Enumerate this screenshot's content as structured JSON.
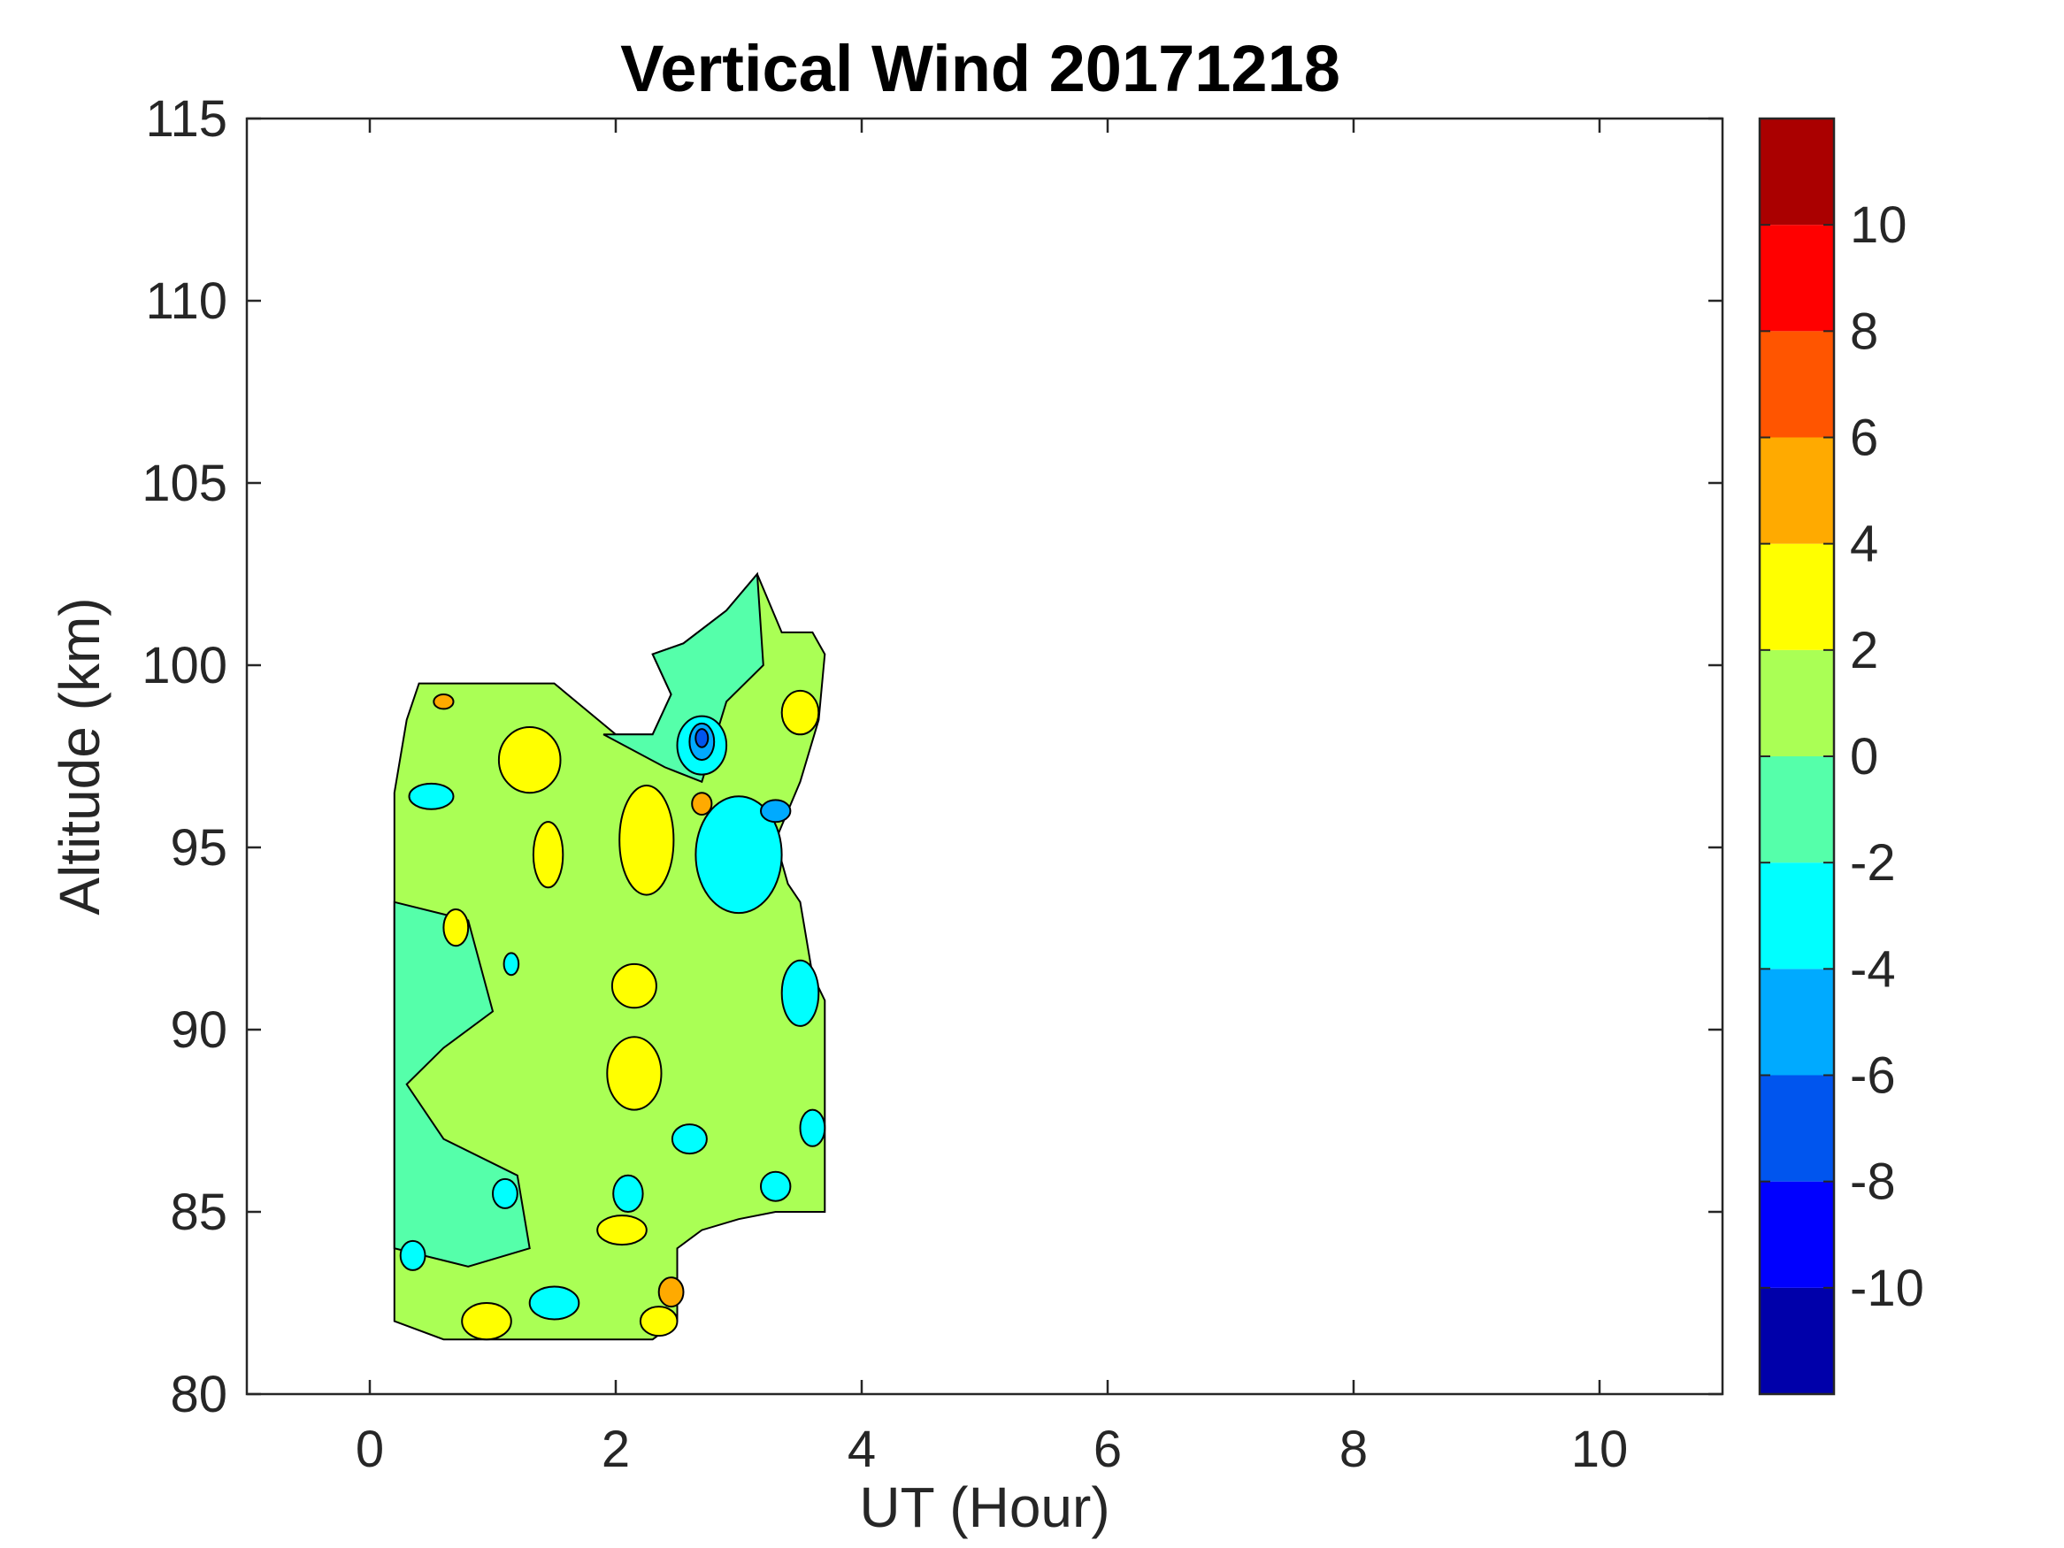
{
  "chart_data": {
    "type": "heatmap",
    "title": "Vertical Wind 20171218",
    "xlabel": "UT (Hour)",
    "ylabel": "Altitude (km)",
    "xlim": [
      -1,
      11
    ],
    "ylim": [
      80,
      115
    ],
    "x_ticks": [
      0,
      2,
      4,
      6,
      8,
      10
    ],
    "y_ticks": [
      80,
      85,
      90,
      95,
      100,
      105,
      110,
      115
    ],
    "grid": false,
    "colorbar": {
      "placement": "right",
      "range": [
        -12,
        12
      ],
      "levels": [
        -12,
        -10,
        -8,
        -6,
        -4,
        -2,
        0,
        2,
        4,
        6,
        8,
        10,
        12
      ],
      "colors": [
        "#0000aa",
        "#0000ff",
        "#0055ee",
        "#00aaff",
        "#00ffff",
        "#55ffaa",
        "#aaff55",
        "#ffff00",
        "#ffaa00",
        "#ff5500",
        "#ff0000",
        "#aa0000"
      ],
      "tick_values": [
        10,
        8,
        6,
        4,
        2,
        0,
        -2,
        -4,
        -6,
        -8,
        -10
      ]
    },
    "data_region": [
      [
        0.2,
        96.5
      ],
      [
        0.3,
        98.5
      ],
      [
        0.4,
        99.5
      ],
      [
        0.8,
        99.5
      ],
      [
        1.2,
        99.5
      ],
      [
        1.5,
        99.5
      ],
      [
        2.0,
        98.1
      ],
      [
        2.3,
        98.1
      ],
      [
        2.45,
        99.2
      ],
      [
        2.3,
        100.3
      ],
      [
        2.55,
        100.6
      ],
      [
        2.9,
        101.5
      ],
      [
        3.15,
        102.5
      ],
      [
        3.35,
        100.9
      ],
      [
        3.6,
        100.9
      ],
      [
        3.7,
        100.3
      ],
      [
        3.65,
        98.5
      ],
      [
        3.5,
        96.8
      ],
      [
        3.3,
        95.2
      ],
      [
        3.4,
        94.0
      ],
      [
        3.5,
        93.5
      ],
      [
        3.6,
        91.5
      ],
      [
        3.7,
        90.8
      ],
      [
        3.7,
        85.0
      ],
      [
        3.3,
        85.0
      ],
      [
        3.0,
        84.8
      ],
      [
        2.7,
        84.5
      ],
      [
        2.5,
        84.0
      ],
      [
        2.5,
        82.0
      ],
      [
        2.3,
        81.5
      ],
      [
        0.6,
        81.5
      ],
      [
        0.2,
        82.0
      ],
      [
        0.2,
        90.0
      ]
    ],
    "patches": [
      {
        "value": 3,
        "x": 2.25,
        "y": 95.2,
        "rx": 0.22,
        "ry": 1.5
      },
      {
        "value": 3,
        "x": 1.45,
        "y": 94.8,
        "rx": 0.12,
        "ry": 0.9
      },
      {
        "value": 3,
        "x": 1.3,
        "y": 97.4,
        "rx": 0.25,
        "ry": 0.9
      },
      {
        "value": 3,
        "x": 2.15,
        "y": 91.2,
        "rx": 0.18,
        "ry": 0.6
      },
      {
        "value": 3,
        "x": 2.15,
        "y": 88.8,
        "rx": 0.22,
        "ry": 1.0
      },
      {
        "value": 3,
        "x": 2.05,
        "y": 84.5,
        "rx": 0.2,
        "ry": 0.4
      },
      {
        "value": 3,
        "x": 0.95,
        "y": 82.0,
        "rx": 0.2,
        "ry": 0.5
      },
      {
        "value": 3,
        "x": 2.35,
        "y": 82.0,
        "rx": 0.15,
        "ry": 0.4
      },
      {
        "value": 3,
        "x": 3.5,
        "y": 98.7,
        "rx": 0.15,
        "ry": 0.6
      },
      {
        "value": 3,
        "x": 0.7,
        "y": 92.8,
        "rx": 0.1,
        "ry": 0.5
      },
      {
        "value": 5,
        "x": 2.45,
        "y": 82.8,
        "rx": 0.1,
        "ry": 0.4
      },
      {
        "value": 5,
        "x": 2.7,
        "y": 96.2,
        "rx": 0.08,
        "ry": 0.3
      },
      {
        "value": 5,
        "x": 0.6,
        "y": 99.0,
        "rx": 0.08,
        "ry": 0.2
      },
      {
        "value": -3,
        "x": 3.0,
        "y": 94.8,
        "rx": 0.35,
        "ry": 1.6
      },
      {
        "value": -3,
        "x": 2.7,
        "y": 97.8,
        "rx": 0.2,
        "ry": 0.8
      },
      {
        "value": -3,
        "x": 3.5,
        "y": 91.0,
        "rx": 0.15,
        "ry": 0.9
      },
      {
        "value": -3,
        "x": 3.6,
        "y": 87.3,
        "rx": 0.1,
        "ry": 0.5
      },
      {
        "value": -3,
        "x": 0.5,
        "y": 96.4,
        "rx": 0.18,
        "ry": 0.35
      },
      {
        "value": -3,
        "x": 0.35,
        "y": 83.8,
        "rx": 0.1,
        "ry": 0.4
      },
      {
        "value": -3,
        "x": 1.5,
        "y": 82.5,
        "rx": 0.2,
        "ry": 0.45
      },
      {
        "value": -3,
        "x": 1.1,
        "y": 85.5,
        "rx": 0.1,
        "ry": 0.4
      },
      {
        "value": -3,
        "x": 2.1,
        "y": 85.5,
        "rx": 0.12,
        "ry": 0.5
      },
      {
        "value": -3,
        "x": 2.6,
        "y": 87.0,
        "rx": 0.14,
        "ry": 0.4
      },
      {
        "value": -3,
        "x": 3.3,
        "y": 85.7,
        "rx": 0.12,
        "ry": 0.4
      },
      {
        "value": -3,
        "x": 1.15,
        "y": 91.8,
        "rx": 0.06,
        "ry": 0.3
      },
      {
        "value": -5,
        "x": 2.7,
        "y": 97.9,
        "rx": 0.1,
        "ry": 0.5
      },
      {
        "value": -5,
        "x": 3.3,
        "y": 96.0,
        "rx": 0.12,
        "ry": 0.3
      },
      {
        "value": -7,
        "x": 2.7,
        "y": 98.0,
        "rx": 0.05,
        "ry": 0.25
      }
    ]
  }
}
